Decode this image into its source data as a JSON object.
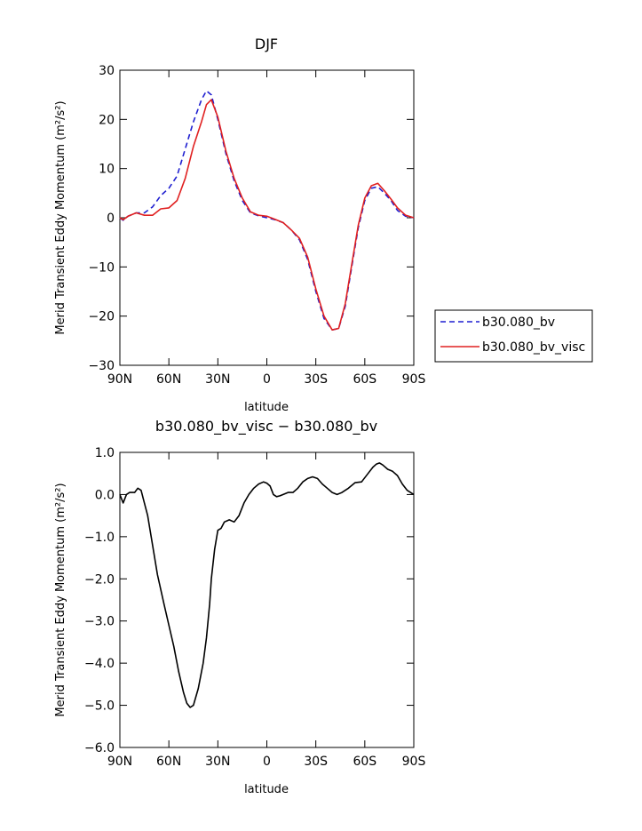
{
  "chart_data": [
    {
      "type": "line",
      "title": "DJF",
      "xlabel": "latitude",
      "ylabel": "Merid Transient Eddy Momentum (m²/s²)",
      "x_tick_labels": [
        "90N",
        "60N",
        "30N",
        "0",
        "30S",
        "60S",
        "90S"
      ],
      "x_tick_values": [
        90,
        60,
        30,
        0,
        -30,
        -60,
        -90
      ],
      "xlim": [
        90,
        -90
      ],
      "y_tick_values": [
        30,
        20,
        10,
        0,
        -10,
        -20,
        -30
      ],
      "y_tick_labels": [
        "30",
        "20",
        "10",
        "0",
        "−10",
        "−20",
        "−30"
      ],
      "ylim": [
        -30,
        30
      ],
      "grid": false,
      "legend_position": "right, outside plot",
      "series": [
        {
          "name": "b30.080_bv",
          "color": "#1f1fd0",
          "dash": "dashed",
          "x": [
            90,
            88,
            85,
            80,
            75,
            70,
            65,
            60,
            55,
            50,
            45,
            40,
            37,
            34,
            30,
            25,
            20,
            15,
            10,
            5,
            0,
            -5,
            -10,
            -15,
            -20,
            -25,
            -30,
            -35,
            -40,
            -44,
            -48,
            -52,
            -56,
            -60,
            -64,
            -68,
            -72,
            -76,
            -80,
            -85,
            -90
          ],
          "values": [
            0,
            -0.5,
            0.3,
            1.0,
            1.0,
            2.2,
            4.5,
            6.0,
            8.5,
            14.0,
            19.5,
            24.0,
            25.8,
            25.0,
            20.0,
            13.0,
            7.5,
            3.5,
            1.0,
            0.4,
            0,
            -0.4,
            -1.0,
            -2.5,
            -4.5,
            -8.5,
            -15.0,
            -20.5,
            -22.8,
            -22.5,
            -18.0,
            -10.0,
            -2.0,
            3.5,
            6.0,
            6.3,
            5.0,
            3.5,
            1.5,
            0.3,
            0
          ]
        },
        {
          "name": "b30.080_bv_visc",
          "color": "#e02020",
          "dash": "solid",
          "x": [
            90,
            88,
            85,
            80,
            75,
            70,
            65,
            60,
            55,
            50,
            45,
            40,
            37,
            34,
            30,
            25,
            20,
            15,
            10,
            5,
            0,
            -5,
            -10,
            -15,
            -20,
            -25,
            -30,
            -35,
            -40,
            -44,
            -48,
            -52,
            -56,
            -60,
            -64,
            -68,
            -72,
            -76,
            -80,
            -85,
            -90
          ],
          "values": [
            0,
            -0.4,
            0.3,
            1.0,
            0.5,
            0.5,
            1.8,
            2.0,
            3.5,
            8.0,
            14.5,
            19.5,
            23.0,
            24.0,
            20.5,
            13.5,
            8.0,
            4.0,
            1.2,
            0.5,
            0.3,
            -0.3,
            -1.0,
            -2.5,
            -4.2,
            -8.0,
            -14.5,
            -20.0,
            -22.8,
            -22.5,
            -17.5,
            -9.5,
            -1.5,
            4.0,
            6.5,
            7.0,
            5.5,
            3.8,
            2.0,
            0.5,
            0
          ]
        }
      ]
    },
    {
      "type": "line",
      "title": "b30.080_bv_visc − b30.080_bv",
      "xlabel": "latitude",
      "ylabel": "Merid Transient Eddy Momentum (m²/s²)",
      "x_tick_labels": [
        "90N",
        "60N",
        "30N",
        "0",
        "30S",
        "60S",
        "90S"
      ],
      "x_tick_values": [
        90,
        60,
        30,
        0,
        -30,
        -60,
        -90
      ],
      "xlim": [
        90,
        -90
      ],
      "y_tick_values": [
        1,
        0,
        -1,
        -2,
        -3,
        -4,
        -5,
        -6
      ],
      "y_tick_labels": [
        "1.0",
        "0.0",
        "−1.0",
        "−2.0",
        "−3.0",
        "−4.0",
        "−5.0",
        "−6.0"
      ],
      "ylim": [
        -6,
        1
      ],
      "grid": false,
      "series": [
        {
          "color": "#000000",
          "dash": "solid",
          "x": [
            90,
            88,
            86,
            84,
            81,
            79,
            77,
            75,
            73,
            70,
            67,
            63,
            60,
            57,
            54,
            51,
            49,
            47,
            45,
            42,
            39,
            37,
            35,
            34,
            32,
            30,
            28,
            26,
            23,
            20,
            17,
            14,
            11,
            8,
            5,
            2,
            0,
            -2,
            -4,
            -6,
            -8,
            -10,
            -13,
            -16,
            -19,
            -22,
            -25,
            -28,
            -31,
            -34,
            -37,
            -40,
            -43,
            -46,
            -50,
            -54,
            -58,
            -62,
            -65,
            -67,
            -69,
            -71,
            -74,
            -77,
            -80,
            -83,
            -86,
            -90
          ],
          "values": [
            0,
            -0.2,
            0.0,
            0.05,
            0.05,
            0.15,
            0.1,
            -0.2,
            -0.5,
            -1.2,
            -1.9,
            -2.6,
            -3.1,
            -3.6,
            -4.2,
            -4.7,
            -4.95,
            -5.05,
            -5.0,
            -4.6,
            -4.0,
            -3.4,
            -2.6,
            -2.0,
            -1.3,
            -0.85,
            -0.8,
            -0.65,
            -0.6,
            -0.65,
            -0.5,
            -0.2,
            0.0,
            0.15,
            0.25,
            0.3,
            0.27,
            0.2,
            0.0,
            -0.05,
            -0.03,
            0.0,
            0.05,
            0.05,
            0.15,
            0.3,
            0.38,
            0.42,
            0.38,
            0.25,
            0.15,
            0.05,
            0.0,
            0.05,
            0.15,
            0.28,
            0.3,
            0.5,
            0.65,
            0.72,
            0.75,
            0.7,
            0.6,
            0.55,
            0.45,
            0.25,
            0.1,
            0.0
          ]
        }
      ]
    }
  ]
}
